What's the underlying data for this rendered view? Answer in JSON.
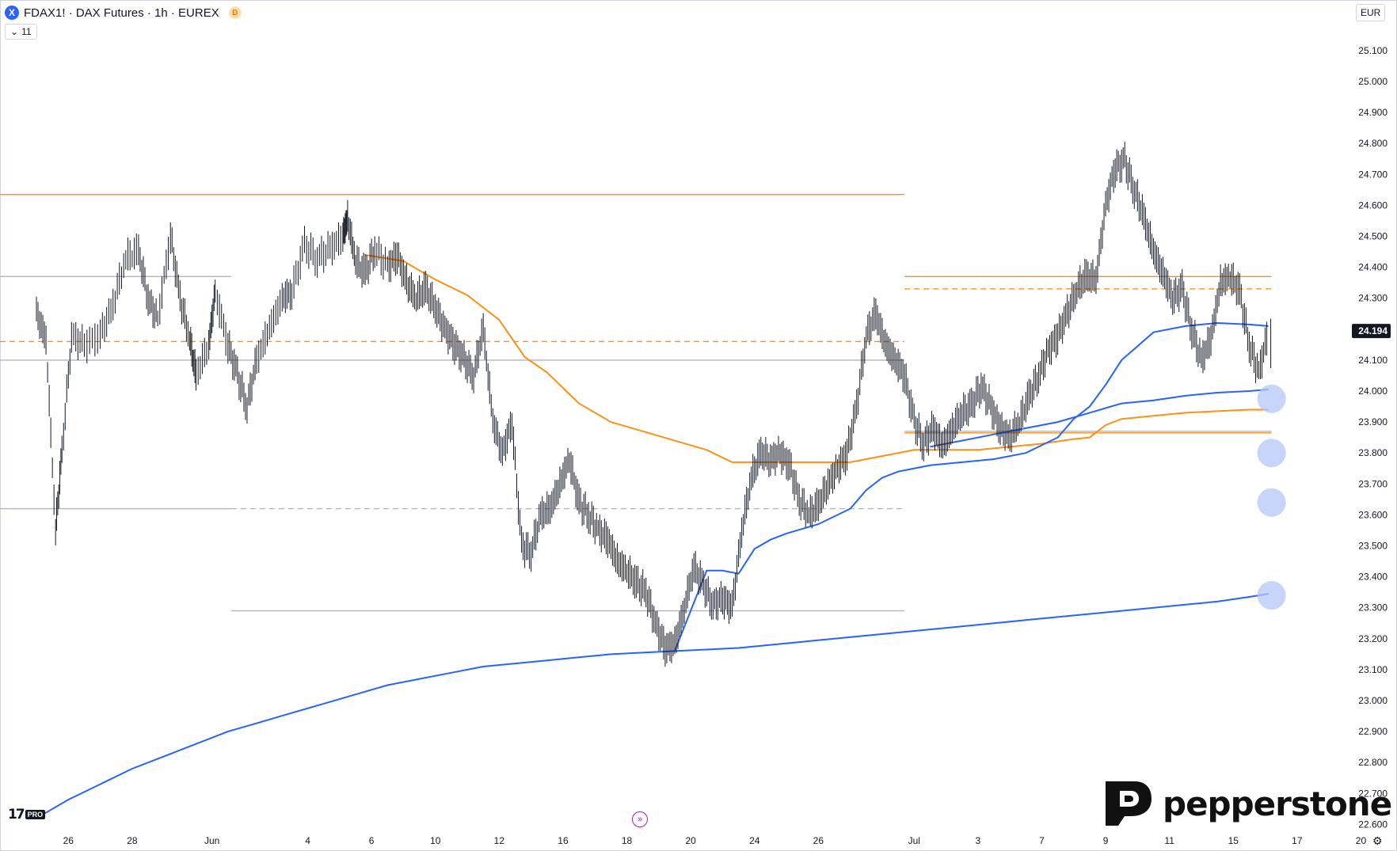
{
  "header": {
    "symbol_logo": "X",
    "title": "FDAX1! · DAX Futures · 1h · EUREX",
    "badge": "D",
    "indicator_toggle": "11",
    "currency": "EUR"
  },
  "brand": {
    "name": "pepperstone",
    "platform_logo": "TV PRO"
  },
  "colors": {
    "price_bars": "#131722",
    "orange": "#f7931a",
    "blue": "#2962ff",
    "gray_level": "#b2b5be",
    "marker_fill": "#b3c7f7",
    "last_price_bg": "#131722"
  },
  "chart_data": {
    "type": "line",
    "title": "FDAX1! · DAX Futures · 1h · EUREX",
    "instrument": "DAX Futures",
    "timeframe": "1h",
    "ylim": [
      22550,
      25200
    ],
    "y_ticks": [
      22600,
      22700,
      22800,
      22900,
      23000,
      23100,
      23200,
      23300,
      23400,
      23500,
      23600,
      23700,
      23800,
      23900,
      24000,
      24100,
      24200,
      24300,
      24400,
      24500,
      24600,
      24700,
      24800,
      24900,
      25000,
      25100
    ],
    "y_tick_labels": [
      "22.600",
      "22.700",
      "22.800",
      "22.900",
      "23.000",
      "23.100",
      "23.200",
      "23.300",
      "23.400",
      "23.500",
      "23.600",
      "23.700",
      "23.800",
      "23.900",
      "24.000",
      "24.100",
      "24.200",
      "24.300",
      "24.400",
      "24.500",
      "24.600",
      "24.700",
      "24.800",
      "24.900",
      "25.000",
      "25.100"
    ],
    "x_ticks": [
      {
        "t": 1,
        "label": "26"
      },
      {
        "t": 3,
        "label": "28"
      },
      {
        "t": 5.5,
        "label": "Jun"
      },
      {
        "t": 8.5,
        "label": "4"
      },
      {
        "t": 10.5,
        "label": "6"
      },
      {
        "t": 12.5,
        "label": "10"
      },
      {
        "t": 14.5,
        "label": "12"
      },
      {
        "t": 16.5,
        "label": "16"
      },
      {
        "t": 18.5,
        "label": "18"
      },
      {
        "t": 20.5,
        "label": "20"
      },
      {
        "t": 22.5,
        "label": "24"
      },
      {
        "t": 24.5,
        "label": "26"
      },
      {
        "t": 27.5,
        "label": "Jul"
      },
      {
        "t": 29.5,
        "label": "3"
      },
      {
        "t": 31.5,
        "label": "7"
      },
      {
        "t": 33.5,
        "label": "9"
      },
      {
        "t": 35.5,
        "label": "11"
      },
      {
        "t": 37.5,
        "label": "15"
      },
      {
        "t": 39.5,
        "label": "17"
      },
      {
        "t": 41.5,
        "label": "20"
      }
    ],
    "last_price": 24194,
    "last_price_label": "24.194",
    "price_path": [
      [
        0,
        24250
      ],
      [
        0.3,
        24170
      ],
      [
        0.6,
        23550
      ],
      [
        0.8,
        23800
      ],
      [
        1.1,
        24180
      ],
      [
        1.5,
        24150
      ],
      [
        2.0,
        24180
      ],
      [
        2.4,
        24280
      ],
      [
        2.8,
        24430
      ],
      [
        3.2,
        24450
      ],
      [
        3.5,
        24300
      ],
      [
        3.8,
        24230
      ],
      [
        4.2,
        24500
      ],
      [
        4.5,
        24300
      ],
      [
        4.8,
        24170
      ],
      [
        5.0,
        24050
      ],
      [
        5.4,
        24150
      ],
      [
        5.6,
        24320
      ],
      [
        6.0,
        24150
      ],
      [
        6.3,
        24050
      ],
      [
        6.6,
        23950
      ],
      [
        6.9,
        24100
      ],
      [
        7.3,
        24200
      ],
      [
        7.7,
        24300
      ],
      [
        8.0,
        24320
      ],
      [
        8.4,
        24470
      ],
      [
        8.8,
        24430
      ],
      [
        9.2,
        24460
      ],
      [
        9.6,
        24500
      ],
      [
        9.75,
        24560
      ],
      [
        10.0,
        24420
      ],
      [
        10.3,
        24380
      ],
      [
        10.6,
        24460
      ],
      [
        11.0,
        24400
      ],
      [
        11.3,
        24440
      ],
      [
        11.6,
        24350
      ],
      [
        11.9,
        24300
      ],
      [
        12.2,
        24330
      ],
      [
        12.5,
        24270
      ],
      [
        12.8,
        24200
      ],
      [
        13.1,
        24150
      ],
      [
        13.4,
        24100
      ],
      [
        13.7,
        24050
      ],
      [
        14.0,
        24200
      ],
      [
        14.3,
        23900
      ],
      [
        14.6,
        23800
      ],
      [
        14.9,
        23900
      ],
      [
        15.2,
        23500
      ],
      [
        15.5,
        23480
      ],
      [
        15.8,
        23600
      ],
      [
        16.1,
        23620
      ],
      [
        16.4,
        23700
      ],
      [
        16.7,
        23780
      ],
      [
        17.0,
        23640
      ],
      [
        17.3,
        23600
      ],
      [
        17.6,
        23550
      ],
      [
        17.9,
        23520
      ],
      [
        18.2,
        23450
      ],
      [
        18.5,
        23420
      ],
      [
        18.8,
        23380
      ],
      [
        19.1,
        23350
      ],
      [
        19.4,
        23250
      ],
      [
        19.7,
        23170
      ],
      [
        20.0,
        23180
      ],
      [
        20.3,
        23300
      ],
      [
        20.6,
        23430
      ],
      [
        20.9,
        23370
      ],
      [
        21.2,
        23310
      ],
      [
        21.5,
        23330
      ],
      [
        21.8,
        23300
      ],
      [
        22.1,
        23550
      ],
      [
        22.4,
        23720
      ],
      [
        22.7,
        23800
      ],
      [
        23.0,
        23780
      ],
      [
        23.3,
        23800
      ],
      [
        23.6,
        23760
      ],
      [
        23.9,
        23650
      ],
      [
        24.2,
        23600
      ],
      [
        24.5,
        23630
      ],
      [
        24.8,
        23700
      ],
      [
        25.1,
        23750
      ],
      [
        25.4,
        23800
      ],
      [
        25.7,
        23950
      ],
      [
        26.0,
        24180
      ],
      [
        26.3,
        24250
      ],
      [
        26.6,
        24150
      ],
      [
        26.9,
        24100
      ],
      [
        27.2,
        24050
      ],
      [
        27.5,
        23900
      ],
      [
        27.8,
        23830
      ],
      [
        28.1,
        23880
      ],
      [
        28.4,
        23820
      ],
      [
        28.7,
        23880
      ],
      [
        29.0,
        23930
      ],
      [
        29.3,
        23950
      ],
      [
        29.6,
        24020
      ],
      [
        29.9,
        23950
      ],
      [
        30.2,
        23880
      ],
      [
        30.5,
        23850
      ],
      [
        30.8,
        23900
      ],
      [
        31.1,
        23980
      ],
      [
        31.4,
        24050
      ],
      [
        31.7,
        24130
      ],
      [
        32.0,
        24180
      ],
      [
        32.3,
        24250
      ],
      [
        32.6,
        24330
      ],
      [
        32.9,
        24370
      ],
      [
        33.2,
        24360
      ],
      [
        33.5,
        24600
      ],
      [
        33.8,
        24720
      ],
      [
        34.1,
        24740
      ],
      [
        34.4,
        24650
      ],
      [
        34.7,
        24560
      ],
      [
        35.0,
        24450
      ],
      [
        35.3,
        24380
      ],
      [
        35.6,
        24300
      ],
      [
        35.9,
        24330
      ],
      [
        36.2,
        24200
      ],
      [
        36.5,
        24100
      ],
      [
        36.8,
        24170
      ],
      [
        37.1,
        24350
      ],
      [
        37.4,
        24370
      ],
      [
        37.7,
        24320
      ],
      [
        38.0,
        24150
      ],
      [
        38.3,
        24060
      ],
      [
        38.6,
        24194
      ]
    ],
    "series": [
      {
        "name": "",
        "color": "#f7931a",
        "points": [
          [
            10.3,
            24440
          ],
          [
            11.5,
            24420
          ],
          [
            12.5,
            24360
          ],
          [
            13.5,
            24310
          ],
          [
            14.5,
            24230
          ],
          [
            15.3,
            24110
          ],
          [
            16.0,
            24060
          ],
          [
            17.0,
            23960
          ],
          [
            18.0,
            23900
          ],
          [
            19.0,
            23870
          ],
          [
            20.0,
            23840
          ],
          [
            21.0,
            23810
          ],
          [
            21.8,
            23770
          ],
          [
            22.5,
            23770
          ],
          [
            23.5,
            23770
          ],
          [
            24.5,
            23770
          ],
          [
            25.5,
            23770
          ],
          [
            26.5,
            23790
          ],
          [
            27.5,
            23810
          ],
          [
            28.5,
            23810
          ],
          [
            29.5,
            23810
          ],
          [
            30.5,
            23820
          ],
          [
            31.5,
            23830
          ],
          [
            32.5,
            23845
          ],
          [
            33.0,
            23850
          ],
          [
            33.5,
            23890
          ],
          [
            34.0,
            23910
          ],
          [
            35.0,
            23920
          ],
          [
            36.0,
            23930
          ],
          [
            37.0,
            23935
          ],
          [
            38.0,
            23940
          ],
          [
            38.6,
            23940
          ]
        ]
      },
      {
        "name": "",
        "color": "#2962ff",
        "points": [
          [
            20.0,
            23160
          ],
          [
            20.5,
            23290
          ],
          [
            21.0,
            23420
          ],
          [
            21.5,
            23420
          ],
          [
            22.0,
            23410
          ],
          [
            22.5,
            23490
          ],
          [
            23.0,
            23520
          ],
          [
            23.5,
            23540
          ],
          [
            24.5,
            23570
          ],
          [
            25.5,
            23620
          ],
          [
            26.0,
            23680
          ],
          [
            26.5,
            23720
          ],
          [
            27.0,
            23740
          ],
          [
            28.0,
            23760
          ],
          [
            29.0,
            23770
          ],
          [
            30.0,
            23780
          ],
          [
            31.0,
            23800
          ],
          [
            32.0,
            23850
          ],
          [
            32.5,
            23910
          ],
          [
            33.0,
            23950
          ],
          [
            33.5,
            24020
          ],
          [
            34.0,
            24100
          ],
          [
            35.0,
            24190
          ],
          [
            36.0,
            24210
          ],
          [
            37.0,
            24220
          ],
          [
            38.0,
            24215
          ],
          [
            38.6,
            24210
          ]
        ]
      },
      {
        "name": "",
        "color": "#2962ff",
        "points": [
          [
            28.0,
            23820
          ],
          [
            29.0,
            23840
          ],
          [
            30.0,
            23860
          ],
          [
            31.0,
            23880
          ],
          [
            32.0,
            23900
          ],
          [
            33.0,
            23930
          ],
          [
            34.0,
            23960
          ],
          [
            35.0,
            23970
          ],
          [
            36.0,
            23985
          ],
          [
            37.0,
            23995
          ],
          [
            38.0,
            24000
          ],
          [
            38.6,
            24005
          ]
        ]
      },
      {
        "name": "",
        "color": "#2962ff",
        "points": [
          [
            0,
            22620
          ],
          [
            1,
            22680
          ],
          [
            2,
            22730
          ],
          [
            3,
            22780
          ],
          [
            4,
            22820
          ],
          [
            5,
            22860
          ],
          [
            6,
            22900
          ],
          [
            7,
            22930
          ],
          [
            8,
            22960
          ],
          [
            9,
            22990
          ],
          [
            10,
            23020
          ],
          [
            11,
            23050
          ],
          [
            12,
            23070
          ],
          [
            13,
            23090
          ],
          [
            14,
            23110
          ],
          [
            15,
            23120
          ],
          [
            16,
            23130
          ],
          [
            17,
            23140
          ],
          [
            18,
            23150
          ],
          [
            19,
            23155
          ],
          [
            20,
            23160
          ],
          [
            21,
            23165
          ],
          [
            22,
            23170
          ],
          [
            23,
            23180
          ],
          [
            24,
            23190
          ],
          [
            25,
            23200
          ],
          [
            26,
            23210
          ],
          [
            27,
            23220
          ],
          [
            28,
            23230
          ],
          [
            29,
            23240
          ],
          [
            30,
            23250
          ],
          [
            31,
            23260
          ],
          [
            32,
            23270
          ],
          [
            33,
            23280
          ],
          [
            34,
            23290
          ],
          [
            35,
            23300
          ],
          [
            36,
            23310
          ],
          [
            37,
            23320
          ],
          [
            38,
            23335
          ],
          [
            38.6,
            23345
          ]
        ]
      }
    ],
    "horizontal_levels": [
      {
        "price": 24635,
        "t0": 0,
        "t1": 27.2,
        "color": "#f7931a",
        "style": "solid"
      },
      {
        "price": 24370,
        "t0": 27.2,
        "t1": 38.7,
        "color": "#f7931a",
        "style": "solid"
      },
      {
        "price": 24330,
        "t0": 27.2,
        "t1": 38.7,
        "color": "#f7931a",
        "style": "dashed"
      },
      {
        "price": 24160,
        "t0": 0,
        "t1": 27.2,
        "color": "#f7931a",
        "style": "dashed"
      },
      {
        "price": 23865,
        "t0": 27.2,
        "t1": 38.7,
        "color": "#f7931a",
        "style": "solid"
      },
      {
        "price": 24370,
        "t0": 0,
        "t1": 6.1,
        "color": "#b2b5be",
        "style": "solid"
      },
      {
        "price": 24100,
        "t0": 0,
        "t1": 27.2,
        "color": "#b2b5be",
        "style": "solid"
      },
      {
        "price": 23620,
        "t0": 0,
        "t1": 6.1,
        "color": "#b2b5be",
        "style": "solid"
      },
      {
        "price": 23620,
        "t0": 6.1,
        "t1": 27.2,
        "color": "#b2b5be",
        "style": "dashed"
      },
      {
        "price": 23290,
        "t0": 6.1,
        "t1": 27.2,
        "color": "#b2b5be",
        "style": "solid"
      },
      {
        "price": 23870,
        "t0": 27.2,
        "t1": 38.7,
        "color": "#b2b5be",
        "style": "solid"
      }
    ],
    "markers": [
      {
        "t": 38.7,
        "price": 23975
      },
      {
        "t": 38.7,
        "price": 23800
      },
      {
        "t": 38.7,
        "price": 23640
      },
      {
        "t": 38.7,
        "price": 23340
      }
    ],
    "grid": false
  }
}
